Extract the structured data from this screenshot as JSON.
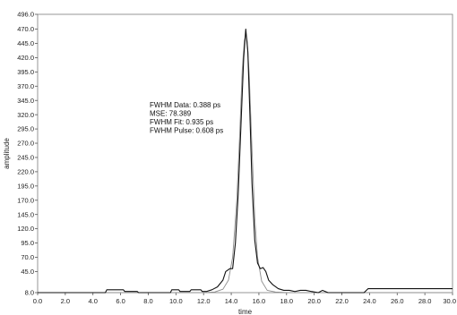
{
  "chart_data": {
    "type": "line",
    "xlabel": "time",
    "ylabel": "amplitude",
    "xlim": [
      0,
      30
    ],
    "ylim": [
      8,
      496
    ],
    "grid": false,
    "x_ticks": [
      "0.0",
      "2.0",
      "4.0",
      "6.0",
      "8.0",
      "10.0",
      "12.0",
      "14.0",
      "16.0",
      "18.0",
      "20.0",
      "22.0",
      "24.0",
      "26.0",
      "28.0",
      "30.0"
    ],
    "y_ticks": [
      "8.0",
      "45.0",
      "70.0",
      "95.0",
      "120.0",
      "145.0",
      "170.0",
      "195.0",
      "220.0",
      "245.0",
      "270.0",
      "295.0",
      "320.0",
      "345.0",
      "370.0",
      "395.0",
      "420.0",
      "445.0",
      "470.0",
      "496.0"
    ],
    "annotations": [
      "FWHM Data: 0.388 ps",
      "MSE: 78.389",
      "FWHM Fit: 0.935 ps",
      "FWHM Pulse: 0.608 ps"
    ],
    "series": [
      {
        "color": "#111111",
        "style": "solid",
        "x": [
          0,
          4.9,
          5.0,
          6.2,
          6.3,
          7.2,
          7.3,
          9.6,
          9.7,
          10.2,
          10.3,
          11.0,
          11.1,
          11.8,
          11.9,
          12.2,
          12.6,
          13.0,
          13.4,
          13.6,
          13.9,
          14.1,
          14.3,
          14.5,
          14.7,
          14.9,
          15.05,
          15.2,
          15.35,
          15.5,
          15.7,
          15.9,
          16.1,
          16.3,
          16.5,
          16.7,
          17.0,
          17.4,
          17.8,
          18.2,
          18.6,
          19.0,
          19.4,
          19.8,
          20.3,
          20.6,
          21.0,
          22.4,
          23.6,
          23.9,
          30
        ],
        "y": [
          8,
          8,
          13,
          13,
          10,
          10,
          8,
          8,
          13,
          13,
          10,
          10,
          13,
          13,
          10,
          10,
          13,
          18,
          30,
          45,
          50,
          50,
          95,
          180,
          300,
          420,
          470,
          430,
          320,
          200,
          100,
          60,
          50,
          52,
          45,
          30,
          22,
          15,
          12,
          12,
          10,
          12,
          12,
          10,
          8,
          12,
          8,
          8,
          8,
          15,
          15
        ]
      },
      {
        "color": "#8c8c8c",
        "style": "solid",
        "x": [
          0,
          12.0,
          12.8,
          13.4,
          13.8,
          14.1,
          14.4,
          14.6,
          14.8,
          14.95,
          15.05,
          15.15,
          15.3,
          15.5,
          15.7,
          15.9,
          16.2,
          16.6,
          17.2,
          18.0,
          30
        ],
        "y": [
          8,
          8,
          9,
          14,
          30,
          70,
          170,
          280,
          400,
          450,
          460,
          450,
          390,
          260,
          140,
          70,
          28,
          12,
          9,
          8,
          8
        ]
      }
    ]
  }
}
